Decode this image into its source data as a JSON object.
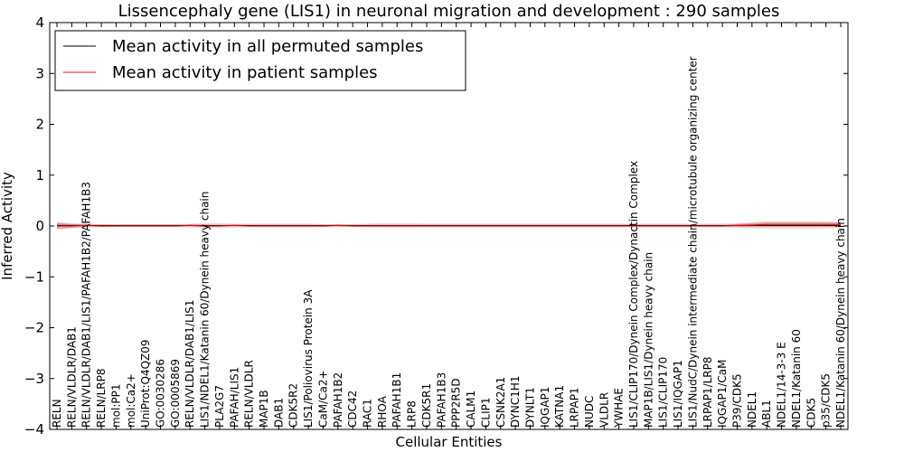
{
  "chart_data": {
    "type": "line",
    "title": "Lissencephaly gene (LIS1) in neuronal migration and development : 290 samples",
    "xlabel": "Cellular Entities",
    "ylabel": "Inferred Activity",
    "ylim": [
      -4,
      4
    ],
    "yticks": [
      "−4",
      "−3",
      "−2",
      "−1",
      "0",
      "1",
      "2",
      "3",
      "4"
    ],
    "categories": [
      "RELN",
      "RELN/VLDLR/DAB1",
      "RELN/VLDLR/DAB1/LIS1/PAFAH1B2/PAFAH1B3",
      "RELN/LRP8",
      "mol:PP1",
      "mol:Ca2+",
      "UniProt:Q4QZ09",
      "GO:0030286",
      "GO:0005869",
      "RELN/VLDLR/DAB1/LIS1",
      "LIS1/NDEL1/Katanin 60/Dynein heavy chain",
      "PLA2G7",
      "PAFAH/LIS1",
      "RELN/VLDLR",
      "MAP1B",
      "DAB1",
      "CDK5R2",
      "LIS1/Poliovirus Protein 3A",
      "CaM/Ca2+",
      "PAFAH1B2",
      "CDC42",
      "RAC1",
      "RHOA",
      "PAFAH1B1",
      "LRP8",
      "CDK5R1",
      "PAFAH1B3",
      "PPP2R5D",
      "CALM1",
      "CLIP1",
      "CSNK2A1",
      "DYNC1H1",
      "DYNLT1",
      "IQGAP1",
      "KATNA1",
      "LRPAP1",
      "NUDC",
      "VLDLR",
      "YWHAE",
      "LIS1/CLIP170/Dynein Complex/Dynactin Complex",
      "MAP1B/LIS1/Dynein heavy chain",
      "LIS1/CLIP170",
      "LIS1/IQGAP1",
      "LIS1/NudC/Dynein intermediate chain/microtubule organizing center",
      "LRPAP1/LRP8",
      "IQGAP1/CaM",
      "P39/CDK5",
      "NDEL1",
      "ABL1",
      "NDEL1/14-3-3 E",
      "NDEL1/Katanin 60",
      "CDK5",
      "p35/CDK5",
      "NDEL1/Katanin 60/Dynein heavy chain"
    ],
    "series": [
      {
        "name": "Mean activity in all permuted samples",
        "color": "#000000",
        "values": [
          0.01,
          0.01,
          0.01,
          0.01,
          0.01,
          0.01,
          0.01,
          0.01,
          0.01,
          0.01,
          0.01,
          0.01,
          0.01,
          0.01,
          0.01,
          0.01,
          0.01,
          0.01,
          0.01,
          0.01,
          0.01,
          0.01,
          0.01,
          0.01,
          0.01,
          0.01,
          0.01,
          0.01,
          0.01,
          0.01,
          0.01,
          0.01,
          0.01,
          0.01,
          0.01,
          0.01,
          0.01,
          0.01,
          0.01,
          0.01,
          0.01,
          0.01,
          0.01,
          0.01,
          0.01,
          0.01,
          0.01,
          0.01,
          0.01,
          0.01,
          0.01,
          0.01,
          0.01,
          0.01
        ],
        "band": [
          0.06,
          0.05,
          0.04,
          0.03,
          0.03,
          0.03,
          0.03,
          0.03,
          0.03,
          0.04,
          0.05,
          0.05,
          0.04,
          0.04,
          0.04,
          0.04,
          0.04,
          0.04,
          0.03,
          0.03,
          0.03,
          0.04,
          0.05,
          0.05,
          0.05,
          0.04,
          0.04,
          0.04,
          0.04,
          0.04,
          0.04,
          0.04,
          0.04,
          0.04,
          0.04,
          0.04,
          0.04,
          0.04,
          0.04,
          0.04,
          0.04,
          0.04,
          0.04,
          0.04,
          0.04,
          0.04,
          0.05,
          0.06,
          0.07,
          0.07,
          0.07,
          0.07,
          0.06,
          0.06
        ]
      },
      {
        "name": "Mean activity in patient samples",
        "color": "#ff0000",
        "values": [
          0.0,
          0.0,
          0.01,
          0.0,
          0.0,
          0.0,
          0.0,
          0.0,
          0.0,
          0.01,
          0.0,
          0.0,
          0.01,
          0.0,
          0.0,
          0.0,
          0.0,
          0.0,
          0.0,
          0.01,
          0.0,
          0.0,
          0.0,
          0.0,
          0.0,
          0.0,
          0.0,
          0.0,
          0.0,
          0.0,
          0.0,
          0.0,
          0.0,
          0.0,
          0.0,
          0.0,
          0.0,
          0.0,
          0.0,
          0.0,
          0.0,
          0.0,
          0.0,
          0.0,
          0.0,
          0.0,
          0.01,
          0.02,
          0.03,
          0.03,
          0.03,
          0.03,
          0.03,
          0.03
        ],
        "band": [
          0.07,
          0.04,
          0.02,
          0.02,
          0.01,
          0.01,
          0.01,
          0.01,
          0.01,
          0.02,
          0.02,
          0.01,
          0.02,
          0.01,
          0.01,
          0.01,
          0.01,
          0.01,
          0.01,
          0.02,
          0.01,
          0.01,
          0.01,
          0.01,
          0.01,
          0.01,
          0.01,
          0.01,
          0.01,
          0.01,
          0.01,
          0.01,
          0.01,
          0.01,
          0.01,
          0.01,
          0.01,
          0.01,
          0.01,
          0.01,
          0.01,
          0.01,
          0.01,
          0.01,
          0.01,
          0.01,
          0.03,
          0.04,
          0.05,
          0.05,
          0.05,
          0.05,
          0.05,
          0.05
        ]
      }
    ],
    "legend": "top-left",
    "grid": false
  }
}
